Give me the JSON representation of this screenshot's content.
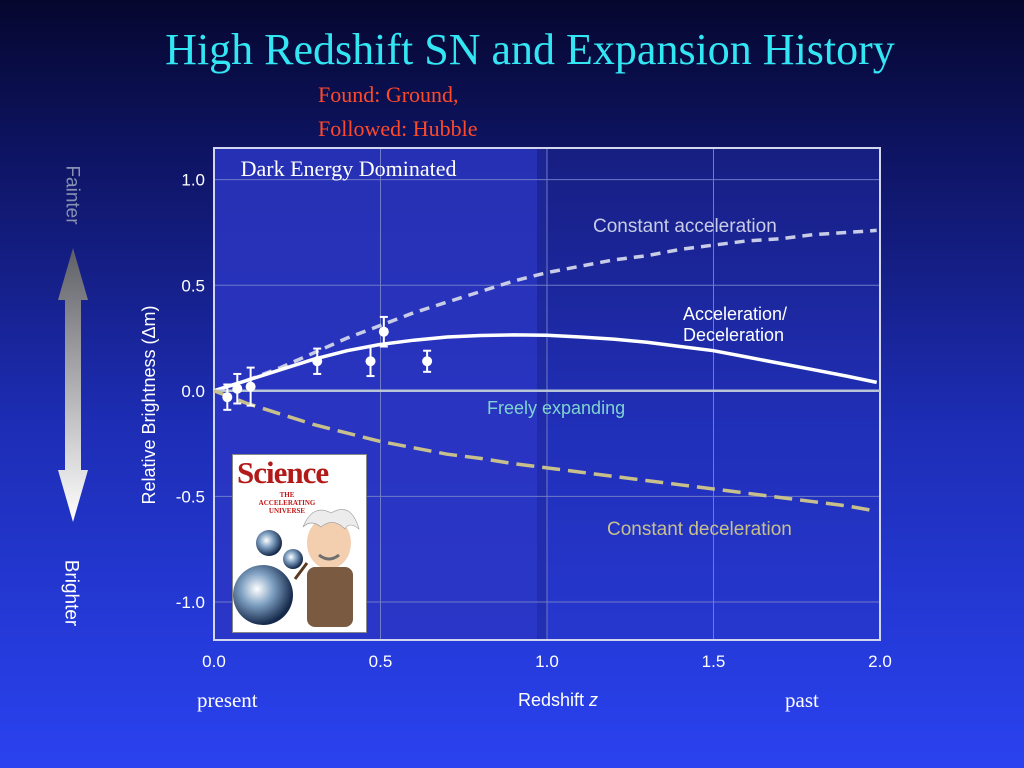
{
  "slide": {
    "title": "High Redshift SN and Expansion History",
    "found_line1": "Found: Ground,",
    "found_line2": "Followed: Hubble"
  },
  "side_arrow": {
    "top_label": "Fainter",
    "bottom_label": "Brighter"
  },
  "bottom_labels": {
    "present": "present",
    "past": "past"
  },
  "cover": {
    "masthead": "Science",
    "headline": "THE ACCELERATING UNIVERSE"
  },
  "colors": {
    "title": "#33e6f3",
    "found": "#ff4a2a",
    "accel_curve": "#ffffff",
    "const_accel_curve": "#c8cce6",
    "const_decel_curve": "#c7c08c",
    "freely_expanding_line": "#b8c4d8",
    "freely_expanding_label": "#7fd4cf",
    "const_decel_label": "#c7c08c",
    "dark_energy_region": "#2c37c4"
  },
  "chart_data": {
    "type": "line",
    "title": "",
    "xlabel": "Redshift",
    "xlabel_var": "z",
    "ylabel": "Relative Brightness (Δm)",
    "xlim": [
      0.0,
      2.0
    ],
    "ylim": [
      -1.18,
      1.15
    ],
    "xticks": [
      "0.0",
      "0.5",
      "1.0",
      "1.5",
      "2.0"
    ],
    "yticks": [
      "1.0",
      "0.5",
      "0.0",
      "-0.5",
      "-1.0"
    ],
    "grid": true,
    "region": {
      "label": "Dark Energy Dominated",
      "x_range": [
        0.0,
        0.97
      ]
    },
    "series": [
      {
        "name": "Constant acceleration",
        "style": "dashed",
        "x": [
          0.0,
          0.1,
          0.2,
          0.3,
          0.4,
          0.5,
          0.6,
          0.7,
          0.8,
          0.9,
          1.0,
          1.1,
          1.2,
          1.3,
          1.4,
          1.5,
          1.6,
          1.7,
          1.8,
          1.9,
          1.99
        ],
        "values": [
          0.0,
          0.05,
          0.11,
          0.18,
          0.25,
          0.31,
          0.37,
          0.42,
          0.47,
          0.52,
          0.56,
          0.59,
          0.62,
          0.64,
          0.67,
          0.69,
          0.71,
          0.72,
          0.74,
          0.75,
          0.76
        ]
      },
      {
        "name": "Acceleration/ Deceleration",
        "name_lines": [
          "Acceleration/",
          "Deceleration"
        ],
        "style": "solid",
        "x": [
          0.0,
          0.1,
          0.2,
          0.3,
          0.4,
          0.5,
          0.6,
          0.7,
          0.8,
          0.9,
          1.0,
          1.1,
          1.2,
          1.3,
          1.4,
          1.5,
          1.6,
          1.7,
          1.8,
          1.9,
          1.99
        ],
        "values": [
          0.0,
          0.05,
          0.1,
          0.15,
          0.19,
          0.22,
          0.24,
          0.255,
          0.262,
          0.265,
          0.263,
          0.255,
          0.245,
          0.23,
          0.21,
          0.19,
          0.16,
          0.13,
          0.1,
          0.07,
          0.04
        ]
      },
      {
        "name": "Freely expanding",
        "style": "solid",
        "x": [
          0.0,
          2.0
        ],
        "values": [
          0.0,
          0.0
        ]
      },
      {
        "name": "Constant deceleration",
        "style": "dashed",
        "x": [
          0.0,
          0.1,
          0.2,
          0.3,
          0.4,
          0.5,
          0.6,
          0.7,
          0.8,
          0.9,
          1.0,
          1.1,
          1.2,
          1.3,
          1.4,
          1.5,
          1.6,
          1.7,
          1.8,
          1.9,
          1.99
        ],
        "values": [
          0.0,
          -0.06,
          -0.11,
          -0.16,
          -0.2,
          -0.24,
          -0.27,
          -0.3,
          -0.32,
          -0.345,
          -0.365,
          -0.385,
          -0.405,
          -0.425,
          -0.445,
          -0.465,
          -0.485,
          -0.505,
          -0.525,
          -0.545,
          -0.57
        ]
      }
    ],
    "points": {
      "x": [
        0.04,
        0.07,
        0.11,
        0.31,
        0.47,
        0.51,
        0.64
      ],
      "y": [
        -0.03,
        0.01,
        0.02,
        0.14,
        0.14,
        0.28,
        0.14
      ],
      "err": [
        0.06,
        0.07,
        0.09,
        0.06,
        0.07,
        0.07,
        0.05
      ]
    }
  }
}
